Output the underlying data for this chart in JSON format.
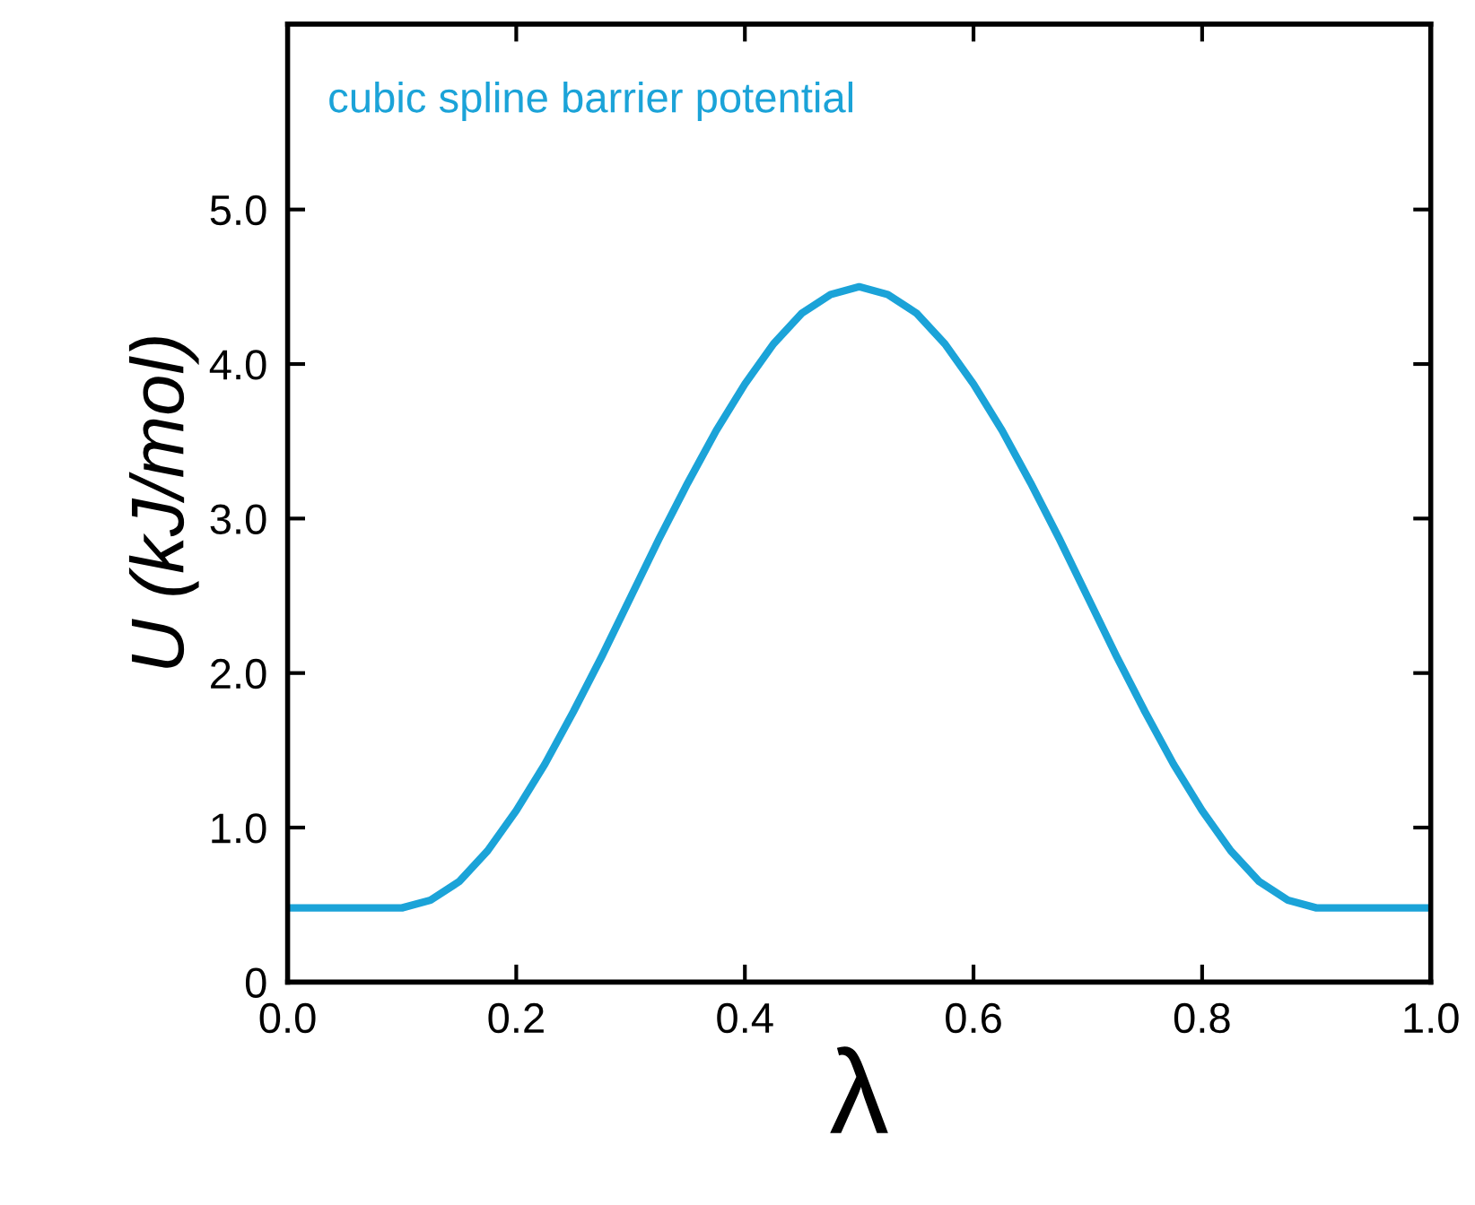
{
  "chart_data": {
    "type": "line",
    "x": [
      0.0,
      0.05,
      0.1,
      0.125,
      0.15,
      0.175,
      0.2,
      0.225,
      0.25,
      0.275,
      0.3,
      0.325,
      0.35,
      0.375,
      0.4,
      0.425,
      0.45,
      0.475,
      0.5,
      0.525,
      0.55,
      0.575,
      0.6,
      0.625,
      0.65,
      0.675,
      0.7,
      0.725,
      0.75,
      0.775,
      0.8,
      0.825,
      0.85,
      0.875,
      0.9,
      0.95,
      1.0
    ],
    "series": [
      {
        "color": "#1ba3d8",
        "values": [
          0.48,
          0.48,
          0.48,
          0.53,
          0.65,
          0.85,
          1.11,
          1.41,
          1.75,
          2.11,
          2.49,
          2.87,
          3.23,
          3.57,
          3.87,
          4.13,
          4.33,
          4.45,
          4.5,
          4.45,
          4.33,
          4.13,
          3.87,
          3.57,
          3.23,
          2.87,
          2.49,
          2.11,
          1.75,
          1.41,
          1.11,
          0.85,
          0.65,
          0.53,
          0.48,
          0.48,
          0.48
        ]
      }
    ],
    "xlabel": "λ",
    "ylabel": "U (kJ/mol)",
    "annotations": [
      "cubic spline barrier potential"
    ],
    "xlim": [
      0,
      1.0
    ],
    "xticks": [
      {
        "value": 0,
        "label": "0.0"
      },
      0.2,
      0.4,
      0.6,
      0.8,
      {
        "value": 1,
        "label": "1.0"
      }
    ],
    "ylim": [
      0,
      6.2
    ],
    "yticks": [
      0,
      {
        "value": 1,
        "label": "1.0"
      },
      {
        "value": 2,
        "label": "2.0"
      },
      {
        "value": 3,
        "label": "3.0"
      },
      {
        "value": 4,
        "label": "4.0"
      },
      {
        "value": 5,
        "label": "5.0"
      }
    ],
    "grid": false,
    "legend": false,
    "marker": "none",
    "line_style": "solid"
  }
}
